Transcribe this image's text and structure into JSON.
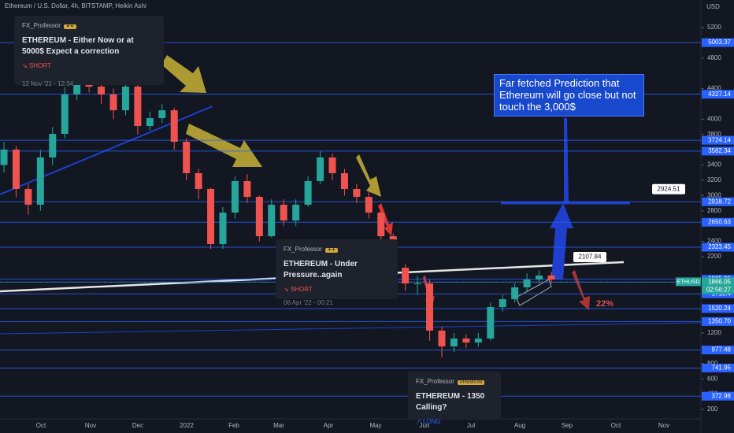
{
  "header": {
    "title": "Ethereum / U.S. Dollar, 4h, BITSTAMP, Heikin Ashi"
  },
  "chart_data": {
    "type": "candlestick",
    "currency_label": "USD",
    "open": [
      3400,
      3602,
      3087,
      2880,
      3499,
      3808,
      4324,
      4633,
      4427,
      4324,
      4117,
      4427,
      3911,
      4014,
      4117,
      3705,
      3293,
      3087,
      2365,
      2777,
      3190,
      2983,
      2468,
      2880,
      2674,
      2880,
      3190,
      3499,
      3293,
      3087,
      2983,
      2777,
      2468,
      2055,
      1849,
      1849,
      1231,
      1025,
      1128,
      1076,
      1128,
      1540,
      1643,
      1798,
      1900,
      1953
    ],
    "high": [
      3700,
      3650,
      3150,
      3600,
      3900,
      4420,
      4800,
      4700,
      4500,
      4400,
      4500,
      4450,
      4100,
      4200,
      4150,
      3750,
      3350,
      3100,
      2850,
      3250,
      3280,
      3000,
      2950,
      2950,
      2950,
      3250,
      3580,
      3550,
      3350,
      3150,
      3050,
      2800,
      2500,
      2100,
      1950,
      1900,
      1280,
      1200,
      1180,
      1200,
      1600,
      1700,
      1850,
      1980,
      2020,
      2000
    ],
    "low": [
      3300,
      2980,
      2750,
      2800,
      3400,
      3750,
      4250,
      4350,
      4200,
      4000,
      4050,
      3800,
      3850,
      3950,
      3600,
      3200,
      2950,
      2300,
      2300,
      2700,
      2900,
      2400,
      2450,
      2600,
      2600,
      2850,
      3150,
      3200,
      3000,
      2900,
      2700,
      2400,
      1950,
      1750,
      1700,
      1100,
      880,
      950,
      1000,
      1020,
      1100,
      1480,
      1600,
      1750,
      1850,
      1850
    ],
    "close": [
      3602,
      3087,
      2880,
      3499,
      3808,
      4324,
      4633,
      4427,
      4324,
      4117,
      4427,
      3911,
      4014,
      4117,
      3705,
      3293,
      3087,
      2365,
      2777,
      3190,
      2983,
      2468,
      2880,
      2674,
      2880,
      3190,
      3499,
      3293,
      3087,
      2983,
      2777,
      2468,
      2055,
      1849,
      1849,
      1231,
      1025,
      1128,
      1076,
      1128,
      1540,
      1643,
      1798,
      1900,
      1953,
      1900
    ],
    "up_color": "#26a69a",
    "down_color": "#ef5350",
    "ylim": [
      97,
      5561
    ],
    "yticks": [
      5200,
      4800,
      4400,
      4000,
      3800,
      3400,
      3200,
      3000,
      2800,
      2400,
      2200,
      1200,
      800,
      600,
      400,
      200
    ],
    "grid": false,
    "x_labels": [
      "Oct",
      "Nov",
      "Dec",
      "2022",
      "Feb",
      "Mar",
      "Apr",
      "May",
      "Jun",
      "Jul",
      "Aug",
      "Sep",
      "Oct",
      "Nov"
    ],
    "price_levels": [
      5003.37,
      4327.14,
      3724.14,
      3582.34,
      2918.72,
      2650.63,
      2323.45,
      1905.06,
      {
        "value": 1867.7,
        "label": "1867.70"
      },
      1713.4,
      1520.24,
      {
        "value": 1350.7,
        "label": "1350.70"
      },
      977.48,
      741.95,
      372.98
    ],
    "level_color": "#2962ff",
    "last_price": {
      "symbol": "ETHUSD",
      "value": 1866.05,
      "countdown": "02:56:27"
    },
    "annotations": {
      "ideas": [
        {
          "author": "FX_Professor",
          "title": "ETHEREUM - Either Now or at 5000$ Expect a correction",
          "direction": "SHORT",
          "date": "12 Nov '21 - 12:34"
        },
        {
          "author": "FX_Professor",
          "title": "ETHEREUM - Under Pressure..again",
          "direction": "SHORT",
          "date": "06 Apr '22 - 00:21"
        },
        {
          "author": "FX_Professor",
          "badge": "PREMIUM",
          "title": "ETHEREUM - 1350 Calling?",
          "direction": "LONG"
        }
      ],
      "callout": "Far fetched Prediction that Ethereum will go close but not touch the 3,000$",
      "target_label": 2924.51,
      "resistance_label": 2107.84,
      "drop": {
        "value": 22,
        "label": "22%"
      }
    }
  }
}
